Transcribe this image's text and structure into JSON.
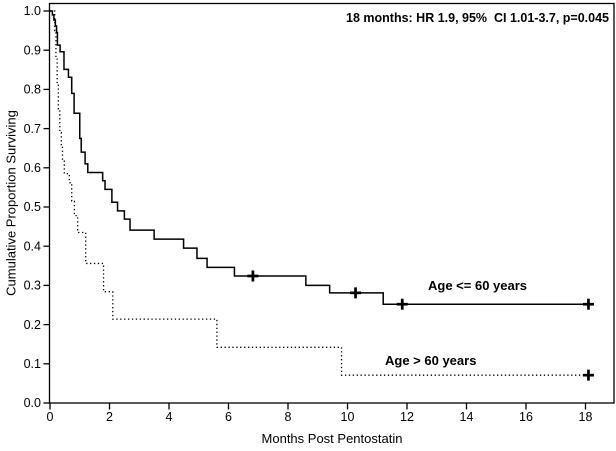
{
  "chart_data": {
    "type": "line",
    "chart_kind": "kaplan-meier-step-plot",
    "annotation": "18 months: HR 1.9, 95%  CI 1.01-3.7, p=0.045",
    "xlabel": "Months Post Pentostatin",
    "ylabel": "Cumulative Proportion Surviving",
    "xlim": [
      0,
      19
    ],
    "ylim": [
      0,
      1.02
    ],
    "x_ticks": [
      0,
      2,
      4,
      6,
      8,
      10,
      12,
      14,
      16,
      18
    ],
    "y_ticks": [
      0,
      0.1,
      0.2,
      0.3,
      0.4,
      0.5,
      0.6,
      0.7,
      0.8,
      0.9,
      1.0
    ],
    "grid": false,
    "axis_color": "#000000",
    "background": "#ffffff",
    "legend_position": "labels-on-plot",
    "series": [
      {
        "name": "Age <= 60 years",
        "label": "Age <= 60 years",
        "line_style": "solid",
        "color": "#000000",
        "steps": [
          [
            0,
            1.0
          ],
          [
            0.08,
            0.99
          ],
          [
            0.13,
            0.977
          ],
          [
            0.18,
            0.962
          ],
          [
            0.22,
            0.945
          ],
          [
            0.25,
            0.913
          ],
          [
            0.34,
            0.896
          ],
          [
            0.47,
            0.851
          ],
          [
            0.62,
            0.831
          ],
          [
            0.73,
            0.79
          ],
          [
            0.81,
            0.739
          ],
          [
            1.0,
            0.675
          ],
          [
            1.05,
            0.64
          ],
          [
            1.18,
            0.61
          ],
          [
            1.27,
            0.588
          ],
          [
            1.77,
            0.567
          ],
          [
            1.85,
            0.545
          ],
          [
            2.08,
            0.512
          ],
          [
            2.27,
            0.49
          ],
          [
            2.5,
            0.469
          ],
          [
            2.69,
            0.441
          ],
          [
            3.5,
            0.418
          ],
          [
            4.49,
            0.395
          ],
          [
            4.94,
            0.369
          ],
          [
            5.28,
            0.346
          ],
          [
            6.2,
            0.324
          ],
          [
            8.6,
            0.3
          ],
          [
            9.4,
            0.281
          ],
          [
            11.2,
            0.252
          ]
        ],
        "censor_marks": [
          [
            6.82,
            0.324
          ],
          [
            10.27,
            0.281
          ],
          [
            11.84,
            0.252
          ],
          [
            18.1,
            0.252
          ]
        ],
        "line_end_x": 18.15
      },
      {
        "name": "Age > 60 years",
        "label": "Age > 60 years",
        "line_style": "dotted",
        "color": "#000000",
        "steps": [
          [
            0,
            1.0
          ],
          [
            0.16,
            0.95
          ],
          [
            0.2,
            0.88
          ],
          [
            0.24,
            0.815
          ],
          [
            0.28,
            0.75
          ],
          [
            0.33,
            0.69
          ],
          [
            0.38,
            0.655
          ],
          [
            0.42,
            0.62
          ],
          [
            0.48,
            0.585
          ],
          [
            0.65,
            0.562
          ],
          [
            0.73,
            0.515
          ],
          [
            0.82,
            0.478
          ],
          [
            0.93,
            0.435
          ],
          [
            1.2,
            0.356
          ],
          [
            1.8,
            0.284
          ],
          [
            2.11,
            0.214
          ],
          [
            5.61,
            0.142
          ],
          [
            9.8,
            0.071
          ]
        ],
        "censor_marks": [
          [
            18.1,
            0.071
          ]
        ],
        "line_end_x": 18.15
      }
    ]
  }
}
